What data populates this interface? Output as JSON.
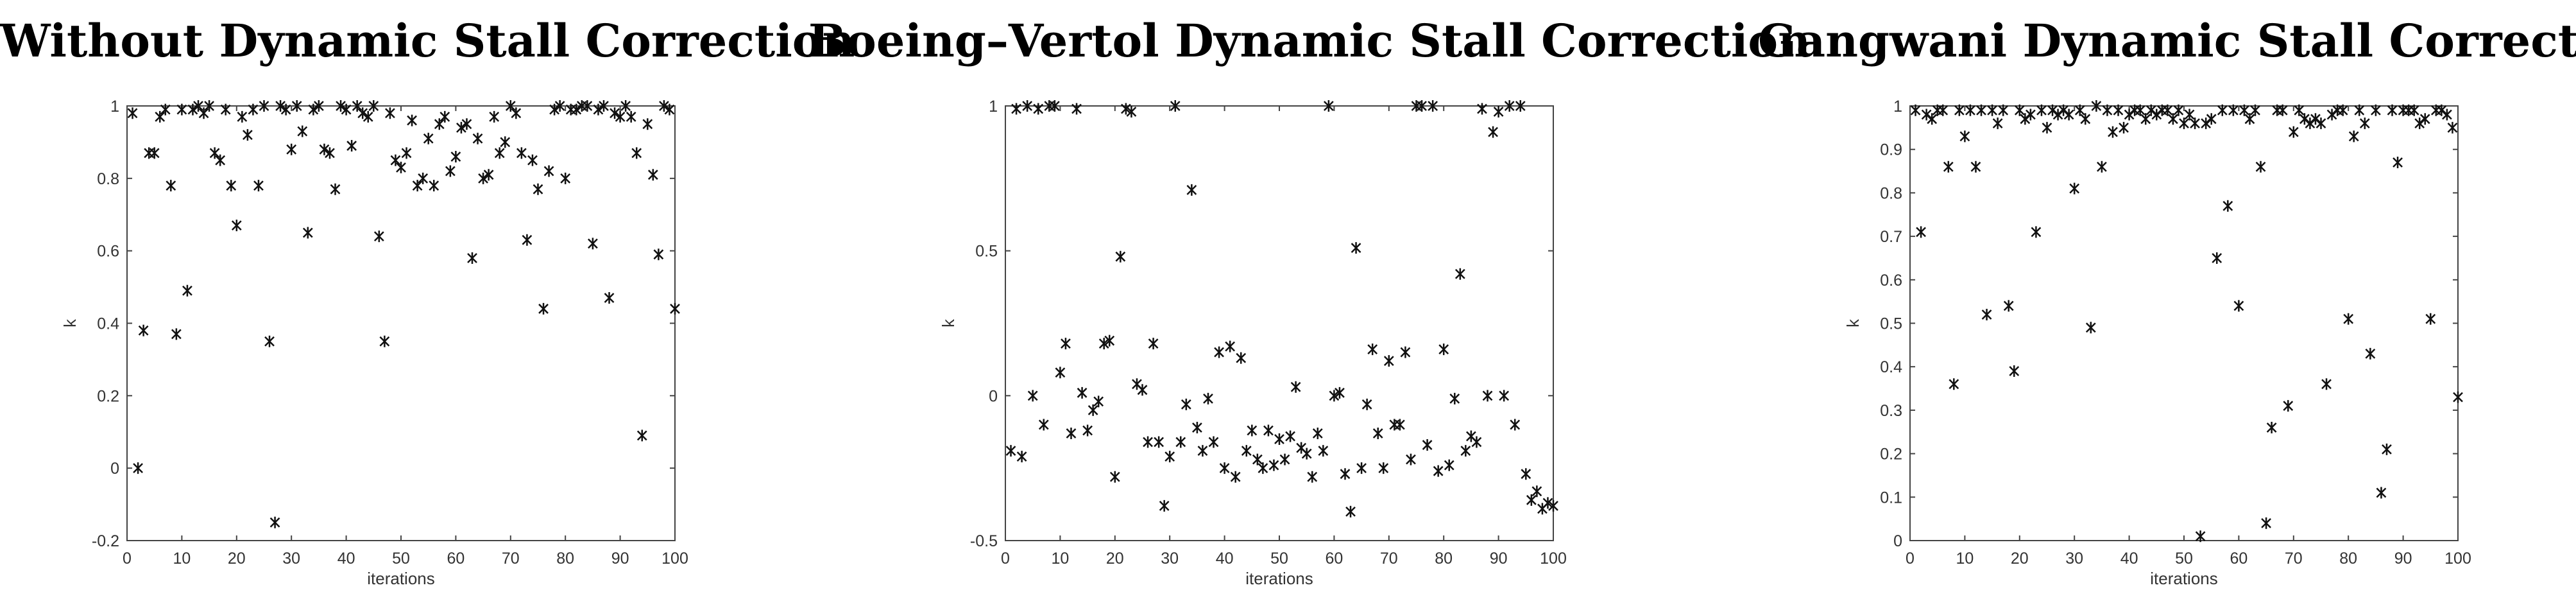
{
  "chart_data": [
    {
      "type": "scatter",
      "title": "Without Dynamic Stall Correction",
      "xlabel": "iterations",
      "ylabel": "k",
      "xlim": [
        0,
        100
      ],
      "ylim": [
        -0.2,
        1
      ],
      "xticks": [
        "0",
        "10",
        "20",
        "30",
        "40",
        "50",
        "60",
        "70",
        "80",
        "90",
        "100"
      ],
      "yticks": [
        "-0.2",
        "0",
        "0.2",
        "0.4",
        "0.6",
        "0.8",
        "1"
      ],
      "grid": false,
      "x": [
        1,
        2,
        3,
        4,
        5,
        6,
        7,
        8,
        9,
        10,
        11,
        12,
        13,
        14,
        15,
        16,
        17,
        18,
        19,
        20,
        21,
        22,
        23,
        24,
        25,
        26,
        27,
        28,
        29,
        30,
        31,
        32,
        33,
        34,
        35,
        36,
        37,
        38,
        39,
        40,
        41,
        42,
        43,
        44,
        45,
        46,
        47,
        48,
        49,
        50,
        51,
        52,
        53,
        54,
        55,
        56,
        57,
        58,
        59,
        60,
        61,
        62,
        63,
        64,
        65,
        66,
        67,
        68,
        69,
        70,
        71,
        72,
        73,
        74,
        75,
        76,
        77,
        78,
        79,
        80,
        81,
        82,
        83,
        84,
        85,
        86,
        87,
        88,
        89,
        90,
        91,
        92,
        93,
        94,
        95,
        96,
        97,
        98,
        99,
        100
      ],
      "y": [
        0.98,
        0.0,
        0.38,
        0.87,
        0.87,
        0.97,
        0.99,
        0.78,
        0.37,
        0.99,
        0.49,
        0.99,
        1.0,
        0.98,
        1.0,
        0.87,
        0.85,
        0.99,
        0.78,
        0.67,
        0.97,
        0.92,
        0.99,
        0.78,
        1.0,
        0.35,
        -0.15,
        1.0,
        0.99,
        0.88,
        1.0,
        0.93,
        0.65,
        0.99,
        1.0,
        0.88,
        0.87,
        0.77,
        1.0,
        0.99,
        0.89,
        1.0,
        0.98,
        0.97,
        1.0,
        0.64,
        0.35,
        0.98,
        0.85,
        0.83,
        0.87,
        0.96,
        0.78,
        0.8,
        0.91,
        0.78,
        0.95,
        0.97,
        0.82,
        0.86,
        0.94,
        0.95,
        0.58,
        0.91,
        0.8,
        0.81,
        0.97,
        0.87,
        0.9,
        1.0,
        0.98,
        0.87,
        0.63,
        0.85,
        0.77,
        0.44,
        0.82,
        0.99,
        1.0,
        0.8,
        0.99,
        0.99,
        1.0,
        1.0,
        0.62,
        0.99,
        1.0,
        0.47,
        0.98,
        0.97,
        1.0,
        0.97,
        0.87,
        0.09,
        0.95,
        0.81,
        0.59,
        1.0,
        0.99,
        0.44
      ]
    },
    {
      "type": "scatter",
      "title": "Boeing–Vertol Dynamic Stall Correction",
      "xlabel": "iterations",
      "ylabel": "k",
      "xlim": [
        0,
        100
      ],
      "ylim": [
        -0.5,
        1
      ],
      "xticks": [
        "0",
        "10",
        "20",
        "30",
        "40",
        "50",
        "60",
        "70",
        "80",
        "90",
        "100"
      ],
      "yticks": [
        "-0.5",
        "0",
        "0.5",
        "1"
      ],
      "grid": false,
      "x": [
        1,
        2,
        3,
        4,
        5,
        6,
        7,
        8,
        9,
        10,
        11,
        12,
        13,
        14,
        15,
        16,
        17,
        18,
        19,
        20,
        21,
        22,
        23,
        24,
        25,
        26,
        27,
        28,
        29,
        30,
        31,
        32,
        33,
        34,
        35,
        36,
        37,
        38,
        39,
        40,
        41,
        42,
        43,
        44,
        45,
        46,
        47,
        48,
        49,
        50,
        51,
        52,
        53,
        54,
        55,
        56,
        57,
        58,
        59,
        60,
        61,
        62,
        63,
        64,
        65,
        66,
        67,
        68,
        69,
        70,
        71,
        72,
        73,
        74,
        75,
        76,
        77,
        78,
        79,
        80,
        81,
        82,
        83,
        84,
        85,
        86,
        87,
        88,
        89,
        90,
        91,
        92,
        93,
        94,
        95,
        96,
        97,
        98,
        99,
        100
      ],
      "y": [
        -0.19,
        0.99,
        -0.21,
        1.0,
        0.0,
        0.99,
        -0.1,
        1.0,
        1.0,
        0.08,
        0.18,
        -0.13,
        0.99,
        0.01,
        -0.12,
        -0.05,
        -0.02,
        0.18,
        0.19,
        -0.28,
        0.48,
        0.99,
        0.98,
        0.04,
        0.02,
        -0.16,
        0.18,
        -0.16,
        -0.38,
        -0.21,
        1.0,
        -0.16,
        -0.03,
        0.71,
        -0.11,
        -0.19,
        -0.01,
        -0.16,
        0.15,
        -0.25,
        0.17,
        -0.28,
        0.13,
        -0.19,
        -0.12,
        -0.22,
        -0.25,
        -0.12,
        -0.24,
        -0.15,
        -0.22,
        -0.14,
        0.03,
        -0.18,
        -0.2,
        -0.28,
        -0.13,
        -0.19,
        1.0,
        0.0,
        0.01,
        -0.27,
        -0.4,
        0.51,
        -0.25,
        -0.03,
        0.16,
        -0.13,
        -0.25,
        0.12,
        -0.1,
        -0.1,
        0.15,
        -0.22,
        1.0,
        1.0,
        -0.17,
        1.0,
        -0.26,
        0.16,
        -0.24,
        -0.01,
        0.42,
        -0.19,
        -0.14,
        -0.16,
        0.99,
        0.0,
        0.91,
        0.98,
        0.0,
        1.0,
        -0.1,
        1.0,
        -0.27,
        -0.36,
        -0.33,
        -0.39,
        -0.37,
        -0.38
      ]
    },
    {
      "type": "scatter",
      "title": "Gangwani Dynamic Stall Correction",
      "xlabel": "iterations",
      "ylabel": "k",
      "xlim": [
        0,
        100
      ],
      "ylim": [
        0,
        1
      ],
      "xticks": [
        "0",
        "10",
        "20",
        "30",
        "40",
        "50",
        "60",
        "70",
        "80",
        "90",
        "100"
      ],
      "yticks": [
        "0",
        "0.1",
        "0.2",
        "0.3",
        "0.4",
        "0.5",
        "0.6",
        "0.7",
        "0.8",
        "0.9",
        "1"
      ],
      "grid": false,
      "x": [
        1,
        2,
        3,
        4,
        5,
        6,
        7,
        8,
        9,
        10,
        11,
        12,
        13,
        14,
        15,
        16,
        17,
        18,
        19,
        20,
        21,
        22,
        23,
        24,
        25,
        26,
        27,
        28,
        29,
        30,
        31,
        32,
        33,
        34,
        35,
        36,
        37,
        38,
        39,
        40,
        41,
        42,
        43,
        44,
        45,
        46,
        47,
        48,
        49,
        50,
        51,
        52,
        53,
        54,
        55,
        56,
        57,
        58,
        59,
        60,
        61,
        62,
        63,
        64,
        65,
        66,
        67,
        68,
        69,
        70,
        71,
        72,
        73,
        74,
        75,
        76,
        77,
        78,
        79,
        80,
        81,
        82,
        83,
        84,
        85,
        86,
        87,
        88,
        89,
        90,
        91,
        92,
        93,
        94,
        95,
        96,
        97,
        98,
        99,
        100
      ],
      "y": [
        0.99,
        0.71,
        0.98,
        0.97,
        0.99,
        0.99,
        0.86,
        0.36,
        0.99,
        0.93,
        0.99,
        0.86,
        0.99,
        0.52,
        0.99,
        0.96,
        0.99,
        0.54,
        0.39,
        0.99,
        0.97,
        0.98,
        0.71,
        0.99,
        0.95,
        0.99,
        0.98,
        0.99,
        0.98,
        0.81,
        0.99,
        0.97,
        0.49,
        1.0,
        0.86,
        0.99,
        0.94,
        0.99,
        0.95,
        0.98,
        0.99,
        0.99,
        0.97,
        0.99,
        0.98,
        0.99,
        0.99,
        0.97,
        0.99,
        0.96,
        0.98,
        0.96,
        0.01,
        0.96,
        0.97,
        0.65,
        0.99,
        0.77,
        0.99,
        0.54,
        0.99,
        0.97,
        0.99,
        0.86,
        0.04,
        0.26,
        0.99,
        0.99,
        0.31,
        0.94,
        0.99,
        0.97,
        0.96,
        0.97,
        0.96,
        0.36,
        0.98,
        0.99,
        0.99,
        0.51,
        0.93,
        0.99,
        0.96,
        0.43,
        0.99,
        0.11,
        0.21,
        0.99,
        0.87,
        0.99,
        0.99,
        0.99,
        0.96,
        0.97,
        0.51,
        0.99,
        0.99,
        0.98,
        0.95,
        0.33
      ]
    }
  ]
}
